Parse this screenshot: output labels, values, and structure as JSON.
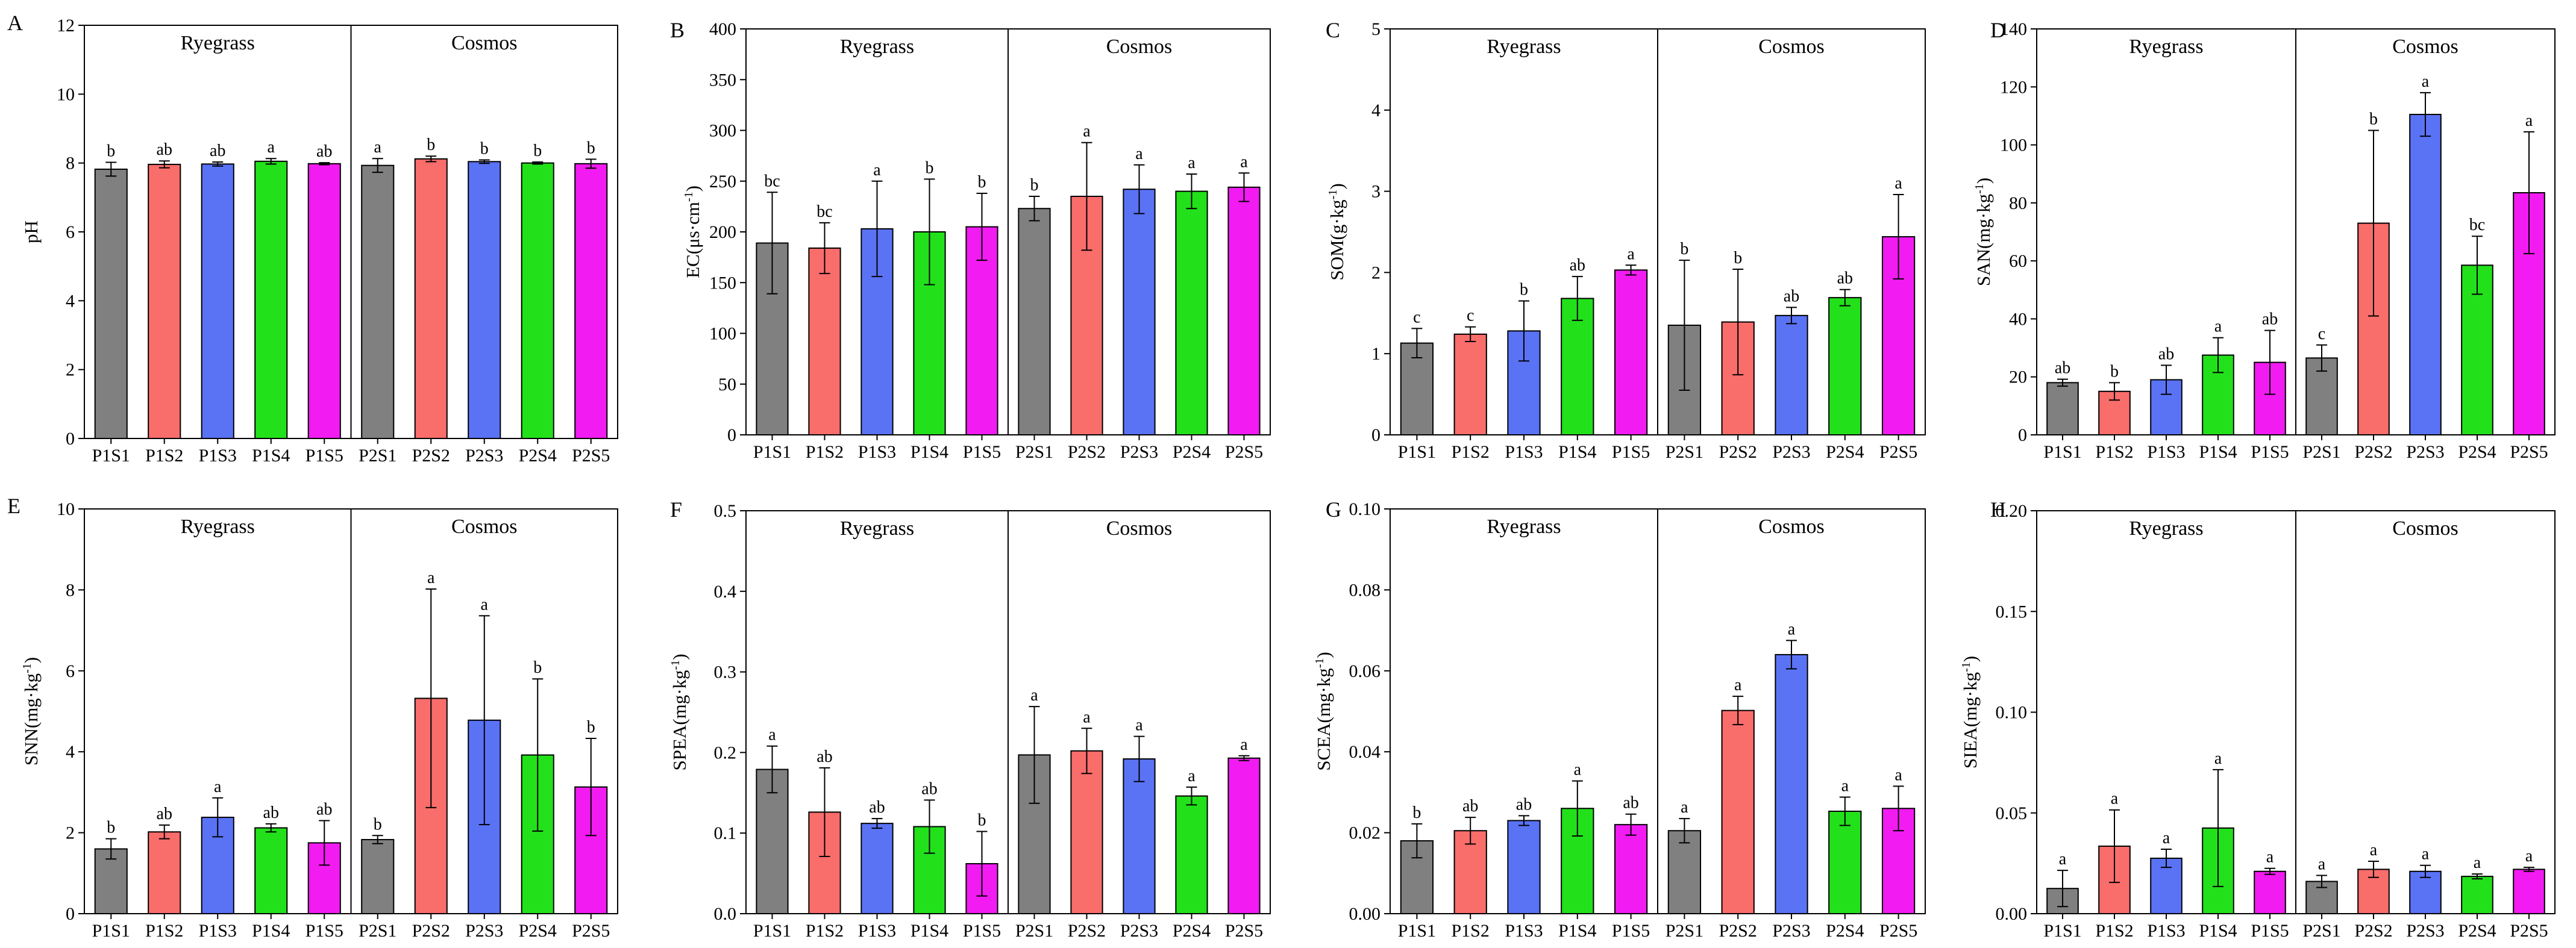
{
  "figure": {
    "groups": [
      "Ryegrass",
      "Cosmos"
    ],
    "colors": [
      "#808080",
      "#f96d6b",
      "#5a73f5",
      "#22e11b",
      "#f21bf2"
    ],
    "bar_stroke": "#000000"
  },
  "chart_data": [
    {
      "type": "bar",
      "panel": "A",
      "title": "",
      "xlabel": "",
      "ylabel": "pH",
      "ylim": [
        0,
        12
      ],
      "yticks": [
        "0",
        "2",
        "4",
        "6",
        "8",
        "10",
        "12"
      ],
      "categories": [
        "P1S1",
        "P1S2",
        "P1S3",
        "P1S4",
        "P1S5",
        "P2S1",
        "P2S2",
        "P2S3",
        "P2S4",
        "P2S5"
      ],
      "values": [
        7.82,
        7.96,
        7.97,
        8.05,
        7.98,
        7.93,
        8.12,
        8.04,
        8.0,
        7.98
      ],
      "errors": [
        0.2,
        0.1,
        0.06,
        0.08,
        0.03,
        0.2,
        0.08,
        0.05,
        0.03,
        0.13
      ],
      "letters": [
        "b",
        "ab",
        "ab",
        "a",
        "ab",
        "a",
        "b",
        "b",
        "b",
        "b"
      ]
    },
    {
      "type": "bar",
      "panel": "B",
      "title": "",
      "xlabel": "",
      "ylabel": "EC(μs·cm⁻¹)",
      "ylim": [
        0,
        400
      ],
      "yticks": [
        "0",
        "50",
        "100",
        "150",
        "200",
        "250",
        "300",
        "350",
        "400"
      ],
      "categories": [
        "P1S1",
        "P1S2",
        "P1S3",
        "P1S4",
        "P1S5",
        "P2S1",
        "P2S2",
        "P2S3",
        "P2S4",
        "P2S5"
      ],
      "values": [
        189,
        184,
        203,
        200,
        205,
        223,
        235,
        242,
        240,
        244
      ],
      "errors": [
        50,
        25,
        47,
        52,
        33,
        12,
        53,
        24,
        17,
        14
      ],
      "letters": [
        "bc",
        "bc",
        "a",
        "b",
        "b",
        "b",
        "a",
        "a",
        "a",
        "a"
      ]
    },
    {
      "type": "bar",
      "panel": "C",
      "title": "",
      "xlabel": "",
      "ylabel": "SOM(g·kg⁻¹)",
      "ylim": [
        0,
        5
      ],
      "yticks": [
        "0",
        "1",
        "2",
        "3",
        "4",
        "5"
      ],
      "categories": [
        "P1S1",
        "P1S2",
        "P1S3",
        "P1S4",
        "P1S5",
        "P2S1",
        "P2S2",
        "P2S3",
        "P2S4",
        "P2S5"
      ],
      "values": [
        1.13,
        1.24,
        1.28,
        1.68,
        2.03,
        1.35,
        1.39,
        1.47,
        1.69,
        2.44
      ],
      "errors": [
        0.18,
        0.09,
        0.37,
        0.27,
        0.06,
        0.8,
        0.65,
        0.1,
        0.1,
        0.52
      ],
      "letters": [
        "c",
        "c",
        "b",
        "ab",
        "a",
        "b",
        "b",
        "ab",
        "ab",
        "a"
      ]
    },
    {
      "type": "bar",
      "panel": "D",
      "title": "",
      "xlabel": "",
      "ylabel": "SAN(mg·kg⁻¹)",
      "ylim": [
        0,
        140
      ],
      "yticks": [
        "0",
        "20",
        "40",
        "60",
        "80",
        "100",
        "120",
        "140"
      ],
      "categories": [
        "P1S1",
        "P1S2",
        "P1S3",
        "P1S4",
        "P1S5",
        "P2S1",
        "P2S2",
        "P2S3",
        "P2S4",
        "P2S5"
      ],
      "values": [
        18,
        15,
        19,
        27.5,
        25,
        26.5,
        73,
        110.5,
        58.5,
        83.5
      ],
      "errors": [
        1.2,
        3,
        5,
        6,
        11,
        4.5,
        32,
        7.5,
        10,
        21
      ],
      "letters": [
        "ab",
        "b",
        "ab",
        "a",
        "ab",
        "c",
        "b",
        "a",
        "bc",
        "a"
      ]
    },
    {
      "type": "bar",
      "panel": "E",
      "title": "",
      "xlabel": "",
      "ylabel": "SNN(mg·kg⁻¹)",
      "ylim": [
        0,
        10
      ],
      "yticks": [
        "0",
        "2",
        "4",
        "6",
        "8",
        "10"
      ],
      "categories": [
        "P1S1",
        "P1S2",
        "P1S3",
        "P1S4",
        "P1S5",
        "P2S1",
        "P2S2",
        "P2S3",
        "P2S4",
        "P2S5"
      ],
      "values": [
        1.6,
        2.02,
        2.38,
        2.12,
        1.75,
        1.83,
        5.32,
        4.78,
        3.92,
        3.13
      ],
      "errors": [
        0.25,
        0.17,
        0.48,
        0.1,
        0.55,
        0.1,
        2.7,
        2.58,
        1.88,
        1.2
      ],
      "letters": [
        "b",
        "ab",
        "a",
        "ab",
        "ab",
        "b",
        "a",
        "a",
        "b",
        "b"
      ]
    },
    {
      "type": "bar",
      "panel": "F",
      "title": "",
      "xlabel": "",
      "ylabel": "SPEA(mg·kg⁻¹)",
      "ylim": [
        0,
        0.5
      ],
      "yticks": [
        "0.0",
        "0.1",
        "0.2",
        "0.3",
        "0.4",
        "0.5"
      ],
      "categories": [
        "P1S1",
        "P1S2",
        "P1S3",
        "P1S4",
        "P1S5",
        "P2S1",
        "P2S2",
        "P2S3",
        "P2S4",
        "P2S5"
      ],
      "values": [
        0.179,
        0.126,
        0.112,
        0.108,
        0.062,
        0.197,
        0.202,
        0.192,
        0.146,
        0.193
      ],
      "errors": [
        0.029,
        0.055,
        0.006,
        0.033,
        0.04,
        0.06,
        0.028,
        0.028,
        0.011,
        0.003
      ],
      "letters": [
        "a",
        "ab",
        "ab",
        "ab",
        "b",
        "a",
        "a",
        "a",
        "a",
        "a"
      ]
    },
    {
      "type": "bar",
      "panel": "G",
      "title": "",
      "xlabel": "",
      "ylabel": "SCEA(mg·kg⁻¹)",
      "ylim": [
        0,
        0.1
      ],
      "yticks": [
        "0.00",
        "0.02",
        "0.04",
        "0.06",
        "0.08",
        "0.10"
      ],
      "categories": [
        "P1S1",
        "P1S2",
        "P1S3",
        "P1S4",
        "P1S5",
        "P2S1",
        "P2S2",
        "P2S3",
        "P2S4",
        "P2S5"
      ],
      "values": [
        0.018,
        0.0205,
        0.023,
        0.026,
        0.022,
        0.0205,
        0.0502,
        0.064,
        0.0253,
        0.026
      ],
      "errors": [
        0.0042,
        0.0033,
        0.0012,
        0.0068,
        0.0026,
        0.003,
        0.0035,
        0.0035,
        0.0035,
        0.0055
      ],
      "letters": [
        "b",
        "ab",
        "ab",
        "a",
        "ab",
        "a",
        "a",
        "a",
        "a",
        "a"
      ]
    },
    {
      "type": "bar",
      "panel": "H",
      "title": "",
      "xlabel": "",
      "ylabel": "SIEA(mg·kg⁻¹)",
      "ylim": [
        0,
        0.2
      ],
      "yticks": [
        "0.00",
        "0.05",
        "0.10",
        "0.15",
        "0.20"
      ],
      "categories": [
        "P1S1",
        "P1S2",
        "P1S3",
        "P1S4",
        "P1S5",
        "P2S1",
        "P2S2",
        "P2S3",
        "P2S4",
        "P2S5"
      ],
      "values": [
        0.0125,
        0.0335,
        0.0275,
        0.0425,
        0.021,
        0.016,
        0.022,
        0.021,
        0.0185,
        0.022
      ],
      "errors": [
        0.009,
        0.018,
        0.0045,
        0.029,
        0.0015,
        0.003,
        0.004,
        0.003,
        0.0012,
        0.001
      ],
      "letters": [
        "a",
        "a",
        "a",
        "a",
        "a",
        "a",
        "a",
        "a",
        "a",
        "a"
      ]
    }
  ]
}
